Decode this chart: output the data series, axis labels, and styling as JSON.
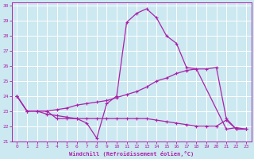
{
  "xlabel": "Windchill (Refroidissement éolien,°C)",
  "xlim": [
    -0.5,
    23.5
  ],
  "ylim": [
    21,
    30.2
  ],
  "yticks": [
    21,
    22,
    23,
    24,
    25,
    26,
    27,
    28,
    29,
    30
  ],
  "xticks": [
    0,
    1,
    2,
    3,
    4,
    5,
    6,
    7,
    8,
    9,
    10,
    11,
    12,
    13,
    14,
    15,
    16,
    17,
    18,
    19,
    20,
    21,
    22,
    23
  ],
  "bg_color": "#cce8f0",
  "line_color": "#aa22aa",
  "grid_color": "#ffffff",
  "line1_x": [
    0,
    1,
    2,
    3,
    4,
    5,
    6,
    7,
    8,
    9,
    10,
    11,
    12,
    13,
    14,
    15,
    16,
    17,
    18,
    21,
    22,
    23
  ],
  "line1_y": [
    24.0,
    23.0,
    23.0,
    23.0,
    22.5,
    22.5,
    22.5,
    22.2,
    21.2,
    23.5,
    24.0,
    28.9,
    29.5,
    29.8,
    29.2,
    28.0,
    27.5,
    25.9,
    25.8,
    21.8,
    21.9,
    21.8
  ],
  "line2_x": [
    0,
    1,
    2,
    3,
    4,
    5,
    6,
    7,
    8,
    9,
    10,
    11,
    12,
    13,
    14,
    15,
    16,
    17,
    18,
    19,
    20,
    21,
    22,
    23
  ],
  "line2_y": [
    24.0,
    23.0,
    23.0,
    23.0,
    23.1,
    23.2,
    23.4,
    23.5,
    23.6,
    23.7,
    23.9,
    24.1,
    24.3,
    24.6,
    25.0,
    25.2,
    25.5,
    25.7,
    25.8,
    25.8,
    25.9,
    22.5,
    21.8,
    21.8
  ],
  "line3_x": [
    0,
    1,
    2,
    3,
    4,
    5,
    6,
    7,
    8,
    9,
    10,
    11,
    12,
    13,
    14,
    15,
    16,
    17,
    18,
    19,
    20,
    21,
    22,
    23
  ],
  "line3_y": [
    24.0,
    23.0,
    23.0,
    22.8,
    22.7,
    22.6,
    22.5,
    22.5,
    22.5,
    22.5,
    22.5,
    22.5,
    22.5,
    22.5,
    22.4,
    22.3,
    22.2,
    22.1,
    22.0,
    22.0,
    22.0,
    22.4,
    21.8,
    21.8
  ]
}
